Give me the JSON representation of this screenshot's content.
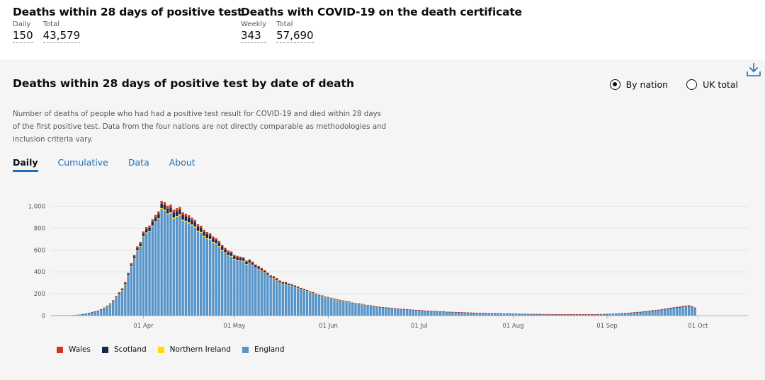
{
  "header": {
    "deaths28": {
      "title": "Deaths within 28 days of positive test",
      "daily_label": "Daily",
      "daily_value": "150",
      "total_label": "Total",
      "total_value": "43,579"
    },
    "certificate": {
      "title": "Deaths with COVID-19 on the death certificate",
      "weekly_label": "Weekly",
      "weekly_value": "343",
      "total_label": "Total",
      "total_value": "57,690"
    }
  },
  "card": {
    "title": "Deaths within 28 days of positive test by date of death",
    "description": "Number of deaths of people who had had a positive test result for COVID-19 and died within 28 days of the first positive test. Data from the four nations are not directly comparable as methodologies and inclusion criteria vary.",
    "radio_options": [
      {
        "label": "By nation",
        "selected": true
      },
      {
        "label": "UK total",
        "selected": false
      }
    ],
    "tabs": [
      {
        "label": "Daily",
        "active": true
      },
      {
        "label": "Cumulative",
        "active": false
      },
      {
        "label": "Data",
        "active": false
      },
      {
        "label": "About",
        "active": false
      }
    ],
    "download_icon": "download-icon"
  },
  "chart_data": {
    "type": "bar",
    "stacked": true,
    "title": "",
    "xlabel": "",
    "ylabel": "",
    "ylim": [
      0,
      1100
    ],
    "yticks": [
      0,
      200,
      400,
      600,
      800,
      1000
    ],
    "ytick_labels": [
      "0",
      "200",
      "400",
      "600",
      "800",
      "1,000"
    ],
    "x_start": "2020-03-02",
    "x_end": "2020-10-17",
    "x_tick_dates": [
      "2020-04-01",
      "2020-05-01",
      "2020-06-01",
      "2020-07-01",
      "2020-08-01",
      "2020-09-01",
      "2020-10-01"
    ],
    "x_tick_labels": [
      "01 Apr",
      "01 May",
      "01 Jun",
      "01 Jul",
      "01 Aug",
      "01 Sep",
      "01 Oct"
    ],
    "legend_position": "bottom-left",
    "grid": true,
    "series": [
      {
        "name": "Wales",
        "color": "#d4351c"
      },
      {
        "name": "Scotland",
        "color": "#12284c"
      },
      {
        "name": "Northern Ireland",
        "color": "#ffdd00"
      },
      {
        "name": "England",
        "color": "#5694ca"
      }
    ],
    "england": [
      1,
      1,
      1,
      2,
      2,
      3,
      4,
      6,
      8,
      11,
      13,
      17,
      23,
      31,
      35,
      43,
      54,
      67,
      84,
      104,
      131,
      165,
      198,
      231,
      286,
      365,
      450,
      521,
      594,
      629,
      720,
      755,
      766,
      817,
      853,
      883,
      974,
      960,
      926,
      934,
      887,
      902,
      915,
      867,
      856,
      843,
      823,
      805,
      767,
      756,
      720,
      701,
      692,
      665,
      653,
      627,
      594,
      571,
      546,
      539,
      511,
      503,
      498,
      495,
      466,
      479,
      460,
      436,
      423,
      408,
      390,
      368,
      344,
      339,
      323,
      301,
      291,
      288,
      277,
      272,
      263,
      252,
      240,
      233,
      223,
      212,
      205,
      193,
      183,
      177,
      168,
      162,
      156,
      150,
      143,
      138,
      133,
      129,
      124,
      115,
      110,
      108,
      104,
      97,
      92,
      90,
      86,
      81,
      79,
      76,
      73,
      71,
      69,
      65,
      63,
      60,
      59,
      57,
      54,
      52,
      50,
      49,
      47,
      44,
      42,
      41,
      40,
      38,
      37,
      36,
      34,
      33,
      32,
      31,
      30,
      29,
      28,
      27,
      26,
      25,
      24,
      24,
      23,
      22,
      21,
      21,
      20,
      19,
      19,
      18,
      18,
      17,
      16,
      16,
      15,
      15,
      15,
      14,
      14,
      13,
      13,
      13,
      12,
      12,
      12,
      11,
      11,
      11,
      11,
      10,
      10,
      10,
      10,
      10,
      10,
      10,
      10,
      11,
      11,
      11,
      12,
      12,
      13,
      14,
      15,
      16,
      17,
      18,
      20,
      22,
      24,
      26,
      28,
      30,
      32,
      35,
      38,
      41,
      44,
      46,
      49,
      53,
      57,
      61,
      65,
      68,
      72,
      75,
      79,
      82,
      84,
      76,
      63
    ],
    "scotland": [
      0,
      0,
      0,
      0,
      0,
      0,
      0,
      0,
      0,
      0,
      1,
      1,
      1,
      1,
      2,
      2,
      2,
      3,
      3,
      4,
      5,
      6,
      7,
      9,
      10,
      12,
      14,
      17,
      19,
      22,
      25,
      28,
      30,
      34,
      36,
      38,
      40,
      42,
      44,
      45,
      45,
      44,
      43,
      42,
      41,
      40,
      39,
      38,
      37,
      36,
      35,
      34,
      33,
      32,
      31,
      30,
      29,
      28,
      27,
      26,
      25,
      24,
      23,
      22,
      21,
      20,
      19,
      18,
      17,
      16,
      15,
      14,
      13,
      12,
      11,
      11,
      10,
      10,
      9,
      9,
      8,
      8,
      7,
      7,
      6,
      6,
      6,
      5,
      5,
      5,
      4,
      4,
      4,
      4,
      3,
      3,
      3,
      3,
      3,
      2,
      2,
      2,
      2,
      2,
      2,
      2,
      2,
      1,
      1,
      1,
      1,
      1,
      1,
      1,
      1,
      1,
      1,
      1,
      1,
      1,
      1,
      1,
      1,
      1,
      1,
      1,
      1,
      1,
      1,
      1,
      1,
      1,
      1,
      1,
      1,
      1,
      1,
      1,
      1,
      1,
      1,
      1,
      1,
      1,
      1,
      1,
      1,
      1,
      1,
      1,
      1,
      1,
      1,
      1,
      1,
      1,
      1,
      1,
      1,
      1,
      1,
      1,
      1,
      1,
      1,
      1,
      1,
      1,
      1,
      1,
      1,
      1,
      1,
      1,
      1,
      1,
      1,
      1,
      1,
      1,
      1,
      1,
      1,
      1,
      1,
      1,
      1,
      1,
      1,
      1,
      1,
      1,
      1,
      1,
      1,
      1,
      2,
      2,
      2,
      2,
      2,
      2,
      3,
      3,
      3,
      3,
      3,
      3,
      4,
      4,
      4,
      4,
      4
    ],
    "northern_ireland": [
      0,
      0,
      0,
      0,
      0,
      0,
      0,
      0,
      0,
      0,
      0,
      0,
      0,
      0,
      0,
      0,
      0,
      1,
      1,
      1,
      1,
      2,
      2,
      2,
      3,
      3,
      4,
      4,
      5,
      5,
      6,
      6,
      7,
      7,
      8,
      8,
      9,
      9,
      9,
      10,
      10,
      10,
      10,
      10,
      10,
      10,
      10,
      10,
      9,
      9,
      9,
      9,
      9,
      8,
      8,
      8,
      8,
      7,
      7,
      7,
      7,
      6,
      6,
      6,
      6,
      5,
      5,
      5,
      5,
      4,
      4,
      4,
      4,
      3,
      3,
      3,
      3,
      3,
      2,
      2,
      2,
      2,
      2,
      2,
      2,
      1,
      1,
      1,
      1,
      1,
      1,
      1,
      1,
      1,
      1,
      1,
      1,
      1,
      1,
      1,
      1,
      1,
      1,
      1,
      0,
      0,
      0,
      0,
      0,
      0,
      0,
      0,
      0,
      0,
      0,
      0,
      0,
      0,
      0,
      0,
      0,
      0,
      0,
      0,
      0,
      0,
      0,
      0,
      0,
      0,
      0,
      0,
      0,
      0,
      0,
      0,
      0,
      0,
      0,
      0,
      0,
      0,
      0,
      0,
      0,
      0,
      0,
      0,
      0,
      0,
      0,
      0,
      0,
      0,
      0,
      0,
      0,
      0,
      0,
      0,
      0,
      0,
      0,
      0,
      0,
      0,
      0,
      0,
      0,
      0,
      0,
      0,
      0,
      0,
      0,
      0,
      0,
      0,
      0,
      0,
      0,
      0,
      0,
      0,
      0,
      0,
      0,
      0,
      0,
      0,
      0,
      0,
      0,
      0,
      0,
      0,
      0,
      0,
      0,
      0,
      0,
      0,
      0,
      0,
      0,
      0,
      0,
      0,
      0,
      0,
      0,
      0,
      0,
      0,
      0
    ],
    "wales": [
      0,
      0,
      0,
      0,
      0,
      0,
      0,
      0,
      0,
      0,
      0,
      0,
      1,
      1,
      1,
      1,
      2,
      2,
      3,
      3,
      4,
      5,
      6,
      7,
      9,
      10,
      12,
      14,
      15,
      17,
      18,
      20,
      21,
      22,
      23,
      24,
      25,
      26,
      26,
      26,
      26,
      26,
      25,
      25,
      24,
      24,
      23,
      22,
      22,
      21,
      20,
      19,
      19,
      18,
      17,
      17,
      16,
      15,
      15,
      14,
      13,
      13,
      12,
      11,
      11,
      10,
      10,
      9,
      9,
      8,
      8,
      7,
      7,
      6,
      6,
      6,
      5,
      5,
      5,
      4,
      4,
      4,
      4,
      3,
      3,
      3,
      3,
      3,
      2,
      2,
      2,
      2,
      2,
      2,
      2,
      2,
      1,
      1,
      1,
      1,
      1,
      1,
      1,
      1,
      1,
      1,
      1,
      1,
      1,
      1,
      1,
      1,
      1,
      1,
      1,
      1,
      1,
      1,
      1,
      1,
      1,
      1,
      1,
      1,
      1,
      1,
      1,
      1,
      1,
      1,
      1,
      1,
      1,
      1,
      1,
      1,
      1,
      1,
      1,
      1,
      1,
      1,
      1,
      1,
      1,
      1,
      1,
      1,
      1,
      1,
      1,
      1,
      1,
      1,
      1,
      1,
      1,
      1,
      1,
      1,
      1,
      1,
      1,
      1,
      1,
      1,
      1,
      1,
      1,
      1,
      1,
      1,
      1,
      1,
      1,
      1,
      1,
      1,
      1,
      1,
      1,
      1,
      1,
      1,
      1,
      1,
      1,
      1,
      1,
      1,
      1,
      1,
      2,
      2,
      2,
      2,
      2,
      2,
      3,
      3,
      3,
      3,
      4,
      4,
      4,
      5,
      5,
      5,
      6,
      6,
      6,
      7,
      7
    ]
  }
}
